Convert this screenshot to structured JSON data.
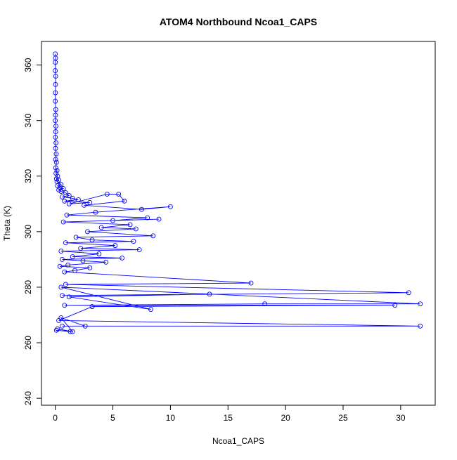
{
  "chart_data": {
    "type": "line",
    "title": "ATOM4 Northbound Ncoa1_CAPS",
    "xlabel": "Ncoa1_CAPS",
    "ylabel": "Theta (K)",
    "xlim": [
      -1.2,
      33.0
    ],
    "ylim": [
      237.5,
      368.5
    ],
    "xticks": [
      0,
      5,
      10,
      15,
      20,
      25,
      30
    ],
    "yticks": [
      240,
      260,
      280,
      300,
      320,
      340,
      360
    ],
    "xtick_labels": [
      "0",
      "5",
      "10",
      "15",
      "20",
      "25",
      "30"
    ],
    "ytick_labels": [
      "240",
      "260",
      "280",
      "300",
      "320",
      "340",
      "360"
    ],
    "grid": false,
    "marker": "open-circle",
    "series_color": "#0000ff",
    "series": [
      {
        "x": [
          0.0,
          0.02,
          0.01,
          0.0,
          0.03,
          0.02,
          0.01,
          0.0,
          0.04,
          0.02,
          0.0,
          0.05,
          0.03,
          0.01,
          0.06,
          0.02,
          0.08,
          0.03,
          0.1,
          0.04,
          0.15,
          0.06,
          0.2,
          0.1,
          0.3,
          0.15,
          0.5,
          0.2,
          0.4,
          0.7,
          0.3,
          0.5,
          0.9,
          1.2,
          0.6,
          1.5,
          2.0,
          0.8,
          3.0,
          1.2,
          4.5,
          5.5,
          6.0,
          2.5,
          7.5,
          10.0,
          3.5,
          1.0,
          8.0,
          5.0,
          9.0,
          0.7,
          6.5,
          4.0,
          7.0,
          2.8,
          8.5,
          1.8,
          3.2,
          6.8,
          0.9,
          5.2,
          2.2,
          7.3,
          0.5,
          3.8,
          1.5,
          5.8,
          0.6,
          2.4,
          4.4,
          1.1,
          0.4,
          3.0,
          1.7,
          0.8,
          17.0,
          0.9,
          30.7,
          0.6,
          13.4,
          1.2,
          8.3,
          0.5,
          31.7,
          18.2,
          0.8,
          29.5,
          3.2,
          0.3,
          31.7,
          0.6,
          2.6,
          0.5,
          1.5,
          0.2,
          1.3,
          0.1
        ],
        "y": [
          364.0,
          362.5,
          361.0,
          358.0,
          356.0,
          353.0,
          350.0,
          347.0,
          344.0,
          342.0,
          340.0,
          338.0,
          336.0,
          334.0,
          332.0,
          330.0,
          328.0,
          326.0,
          325.0,
          323.0,
          322.0,
          321.0,
          320.0,
          319.0,
          318.5,
          318.0,
          317.0,
          316.5,
          316.0,
          315.5,
          315.0,
          314.5,
          314.0,
          313.0,
          312.5,
          312.0,
          311.5,
          311.0,
          310.5,
          310.0,
          313.5,
          313.5,
          311.0,
          309.5,
          308.0,
          309.0,
          307.0,
          306.0,
          305.0,
          304.0,
          304.5,
          303.5,
          302.5,
          301.5,
          301.0,
          300.0,
          298.5,
          298.0,
          297.0,
          296.5,
          296.0,
          295.0,
          294.0,
          293.5,
          293.0,
          292.0,
          291.0,
          290.5,
          290.0,
          289.5,
          289.0,
          288.0,
          287.5,
          287.0,
          286.0,
          285.5,
          281.5,
          281.0,
          278.0,
          277.0,
          277.5,
          276.5,
          272.0,
          280.0,
          274.0,
          274.0,
          273.5,
          273.5,
          273.0,
          268.0,
          266.0,
          266.0,
          266.0,
          269.0,
          264.0,
          265.0,
          264.0,
          264.5
        ]
      }
    ]
  }
}
